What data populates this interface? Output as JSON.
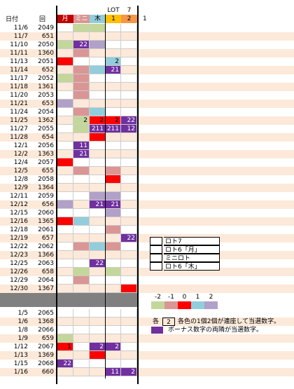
{
  "header": {
    "date": "日付",
    "num": "回",
    "cols": [
      "月",
      "ミニ",
      "木",
      "1",
      "2"
    ],
    "top": [
      "LOT",
      "7"
    ],
    "extra": "1"
  },
  "palette": {
    "g": "#c4d79b",
    "p": "#da9694",
    "r": "#ff0000",
    "c": "#92cddc",
    "l": "#b1a0c7",
    "v": "#7030a0",
    "m": "#808080"
  },
  "rows": [
    {
      "date": "11/6",
      "num": "2049",
      "cells": [
        null,
        {
          "fill": "g"
        },
        {
          "fill": "g"
        },
        null,
        null
      ]
    },
    {
      "date": "11/7",
      "num": "651",
      "cells": [
        null,
        null,
        null,
        null,
        null
      ]
    },
    {
      "date": "11/10",
      "num": "2050",
      "cells": [
        {
          "fill": "g"
        },
        {
          "fill": "v",
          "text": "22"
        },
        {
          "fill": "l"
        },
        null,
        null
      ]
    },
    {
      "date": "11/11",
      "num": "1360",
      "cells": [
        null,
        {
          "fill": "p"
        },
        null,
        null,
        null
      ]
    },
    {
      "date": "11/13",
      "num": "2051",
      "cells": [
        {
          "fill": "r"
        },
        null,
        null,
        {
          "fill": "c",
          "text": "2"
        },
        null
      ]
    },
    {
      "date": "11/14",
      "num": "652",
      "cells": [
        null,
        {
          "fill": "p"
        },
        {
          "fill": "c"
        },
        {
          "fill": "v",
          "text": "21"
        },
        null
      ]
    },
    {
      "date": "11/17",
      "num": "2052",
      "cells": [
        {
          "fill": "g"
        },
        {
          "fill": "p"
        },
        null,
        null,
        null
      ]
    },
    {
      "date": "11/18",
      "num": "1361",
      "cells": [
        null,
        {
          "fill": "p"
        },
        null,
        null,
        null
      ]
    },
    {
      "date": "11/20",
      "num": "2053",
      "cells": [
        null,
        {
          "fill": "p"
        },
        null,
        null,
        null
      ]
    },
    {
      "date": "11/21",
      "num": "653",
      "cells": [
        {
          "fill": "l"
        },
        null,
        null,
        null,
        null
      ]
    },
    {
      "date": "11/24",
      "num": "2054",
      "cells": [
        null,
        {
          "fill": "p"
        },
        {
          "fill": "c"
        },
        null,
        null
      ]
    },
    {
      "date": "11/25",
      "num": "1362",
      "cells": [
        null,
        {
          "fill": "g",
          "text": "2"
        },
        {
          "fill": "r",
          "text": "2"
        },
        {
          "fill": "r",
          "text": "2"
        },
        {
          "fill": "v",
          "text": "22"
        }
      ]
    },
    {
      "date": "11/27",
      "num": "2055",
      "cells": [
        null,
        {
          "fill": "g"
        },
        {
          "fill": "v",
          "text": "211"
        },
        {
          "fill": "v",
          "text": "211"
        },
        {
          "fill": "v",
          "text": "12"
        }
      ]
    },
    {
      "date": "11/28",
      "num": "654",
      "cells": [
        null,
        null,
        {
          "fill": "r"
        },
        null,
        null
      ]
    },
    {
      "date": "12/1",
      "num": "2056",
      "cells": [
        null,
        {
          "fill": "v",
          "text": "11"
        },
        null,
        null,
        null
      ]
    },
    {
      "date": "12/2",
      "num": "1363",
      "cells": [
        null,
        {
          "fill": "v",
          "text": "21"
        },
        null,
        null,
        null
      ]
    },
    {
      "date": "12/4",
      "num": "2057",
      "cells": [
        {
          "fill": "r"
        },
        null,
        null,
        null,
        null
      ]
    },
    {
      "date": "12/5",
      "num": "655",
      "cells": [
        null,
        {
          "fill": "p"
        },
        null,
        {
          "fill": "p"
        },
        null
      ]
    },
    {
      "date": "12/8",
      "num": "2058",
      "cells": [
        null,
        null,
        null,
        {
          "fill": "r"
        },
        null
      ]
    },
    {
      "date": "12/9",
      "num": "1364",
      "cells": [
        null,
        null,
        null,
        null,
        null
      ]
    },
    {
      "date": "12/11",
      "num": "2059",
      "cells": [
        null,
        null,
        {
          "fill": "l"
        },
        {
          "fill": "l"
        },
        null
      ]
    },
    {
      "date": "12/12",
      "num": "656",
      "cells": [
        {
          "fill": "l"
        },
        null,
        {
          "fill": "v",
          "text": "21"
        },
        {
          "fill": "v",
          "text": "21"
        },
        null
      ]
    },
    {
      "date": "12/15",
      "num": "2060",
      "cells": [
        null,
        null,
        null,
        {
          "fill": "l"
        },
        null
      ]
    },
    {
      "date": "12/16",
      "num": "1365",
      "cells": [
        {
          "fill": "r"
        },
        {
          "fill": "c"
        },
        null,
        null,
        null
      ]
    },
    {
      "date": "12/18",
      "num": "2061",
      "cells": [
        null,
        null,
        null,
        {
          "fill": "p"
        },
        null
      ]
    },
    {
      "date": "12/19",
      "num": "657",
      "cells": [
        null,
        null,
        null,
        null,
        {
          "fill": "v",
          "text": "22"
        }
      ]
    },
    {
      "date": "12/22",
      "num": "2062",
      "cells": [
        null,
        {
          "fill": "p"
        },
        {
          "fill": "c"
        },
        {
          "fill": "p"
        },
        null
      ]
    },
    {
      "date": "12/23",
      "num": "1366",
      "cells": [
        null,
        null,
        null,
        null,
        null
      ]
    },
    {
      "date": "12/25",
      "num": "2063",
      "cells": [
        null,
        null,
        {
          "fill": "v",
          "text": "22"
        },
        null,
        null
      ]
    },
    {
      "date": "12/26",
      "num": "658",
      "cells": [
        null,
        {
          "fill": "g"
        },
        null,
        {
          "fill": "g"
        },
        null
      ]
    },
    {
      "date": "12/29",
      "num": "2064",
      "cells": [
        null,
        {
          "fill": "p"
        },
        null,
        null,
        null
      ]
    },
    {
      "date": "12/30",
      "num": "1367",
      "cells": [
        null,
        null,
        null,
        null,
        {
          "fill": "r"
        }
      ]
    }
  ],
  "jan_rows": [
    {
      "date": "1/5",
      "num": "2065",
      "cells": [
        null,
        null,
        null,
        null,
        null
      ]
    },
    {
      "date": "1/6",
      "num": "1368",
      "cells": [
        null,
        null,
        null,
        null,
        null
      ]
    },
    {
      "date": "1/8",
      "num": "2066",
      "cells": [
        null,
        null,
        null,
        null,
        null
      ]
    },
    {
      "date": "1/9",
      "num": "659",
      "cells": [
        {
          "fill": "g"
        },
        null,
        null,
        null,
        null
      ]
    },
    {
      "date": "1/12",
      "num": "2067",
      "cells": [
        {
          "fill": "r",
          "text": "1"
        },
        null,
        {
          "fill": "v",
          "text": "2"
        },
        {
          "fill": "v",
          "text": "2"
        },
        null
      ]
    },
    {
      "date": "1/13",
      "num": "1369",
      "cells": [
        null,
        null,
        {
          "fill": "r"
        },
        null,
        null
      ]
    },
    {
      "date": "1/15",
      "num": "2068",
      "cells": [
        {
          "fill": "v",
          "text": "22"
        },
        null,
        null,
        null,
        null
      ]
    },
    {
      "date": "1/16",
      "num": "660",
      "cells": [
        null,
        null,
        null,
        {
          "fill": "v",
          "text": "11"
        },
        {
          "fill": "v",
          "text": "2"
        }
      ]
    }
  ],
  "legend": [
    "ロト7",
    "ロト6「月」",
    "ミニロト",
    "ロト6「木」"
  ],
  "scale": {
    "labels": [
      "-2",
      "-1",
      "0",
      "1",
      "2"
    ],
    "fills": [
      "g",
      "p",
      "r",
      "c",
      "l"
    ]
  },
  "notes": {
    "each": "各",
    "box": "2",
    "line1": "各色の1個2個が連座して当選数字。",
    "line2": "ボーナス数字の両隣が当選数字。"
  }
}
